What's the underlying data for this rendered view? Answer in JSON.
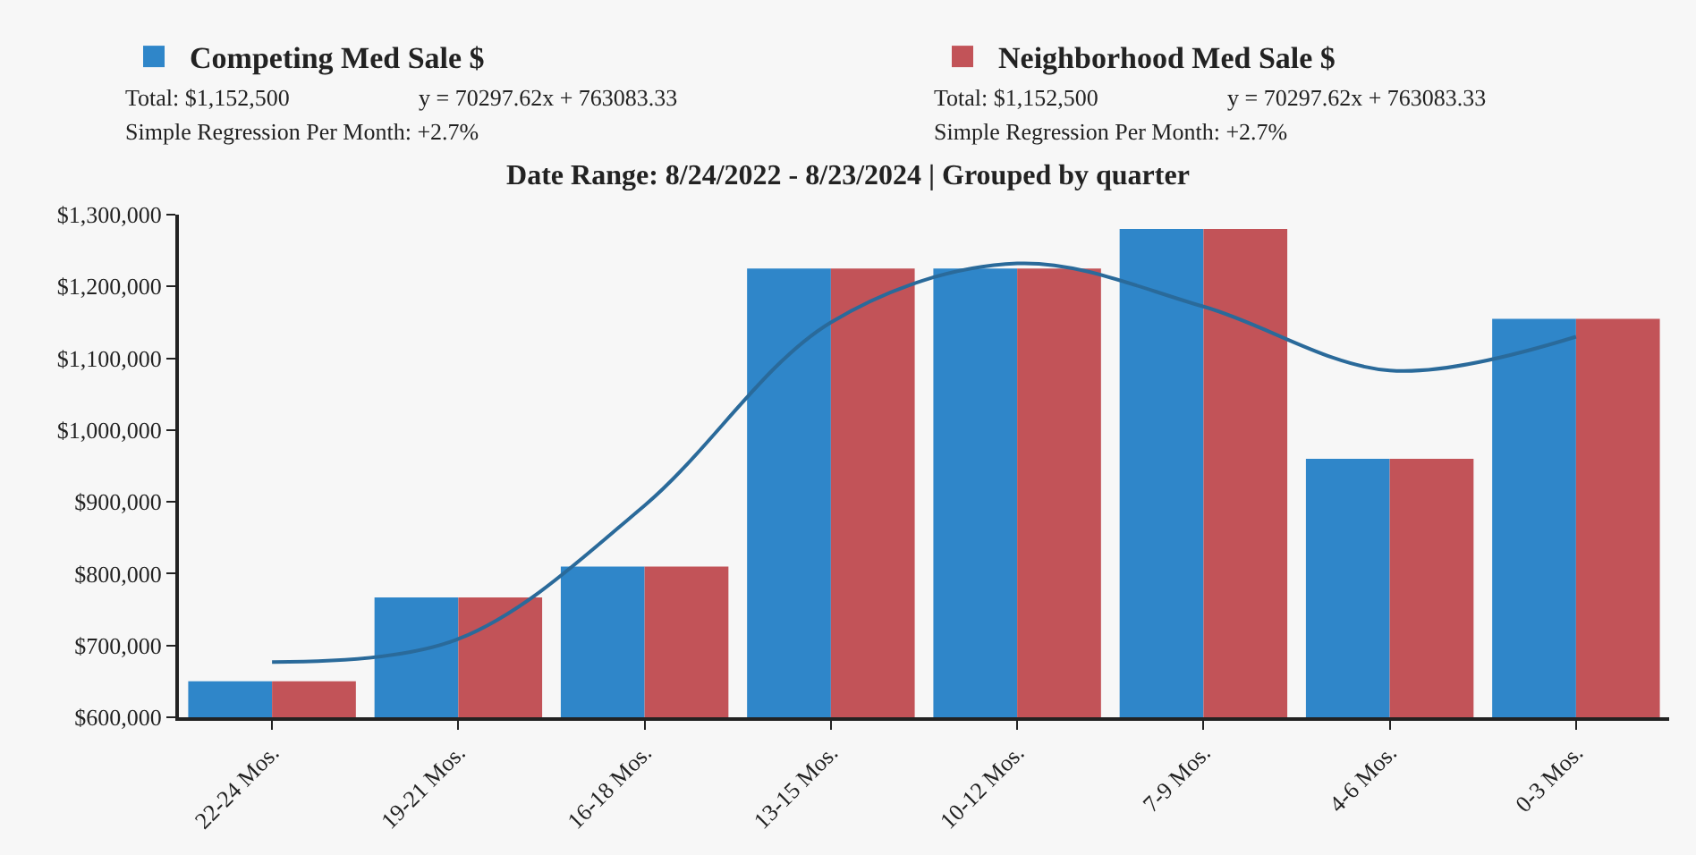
{
  "chart_data": {
    "type": "bar",
    "title": "Date Range: 8/24/2022 - 8/23/2024 | Grouped by quarter",
    "categories": [
      "22-24 Mos.",
      "19-21 Mos.",
      "16-18 Mos.",
      "13-15 Mos.",
      "10-12 Mos.",
      "7-9 Mos.",
      "4-6 Mos.",
      "0-3 Mos."
    ],
    "series": [
      {
        "name": "Competing Med Sale $",
        "color": "#2f86c9",
        "values": [
          650000,
          767000,
          810000,
          1225000,
          1225000,
          1280000,
          960000,
          1155000
        ]
      },
      {
        "name": "Neighborhood Med Sale $",
        "color": "#c25358",
        "values": [
          650000,
          767000,
          810000,
          1225000,
          1225000,
          1280000,
          960000,
          1155000
        ]
      },
      {
        "type": "line",
        "color": "#2a6a9a",
        "values": [
          677000,
          709000,
          895000,
          1150000,
          1232000,
          1172000,
          1083000,
          1130000
        ]
      }
    ],
    "annotations": [
      "Total: $1,152,500",
      "y = 70297.62x + 763083.33",
      "Simple Regression Per Month: +2.7%",
      "Total: $1,152,500",
      "y = 70297.62x + 763083.33",
      "Simple Regression Per Month: +2.7%"
    ],
    "ylim": [
      600000,
      1300000
    ],
    "yticks": [
      {
        "value": 600000,
        "label": "$600,000"
      },
      {
        "value": 700000,
        "label": "$700,000"
      },
      {
        "value": 800000,
        "label": "$800,000"
      },
      {
        "value": 900000,
        "label": "$900,000"
      },
      {
        "value": 1000000,
        "label": "$1,000,000"
      },
      {
        "value": 1100000,
        "label": "$1,100,000"
      },
      {
        "value": 1200000,
        "label": "$1,200,000"
      },
      {
        "value": 1300000,
        "label": "$1,300,000"
      }
    ],
    "grid": false,
    "legend": "top"
  }
}
